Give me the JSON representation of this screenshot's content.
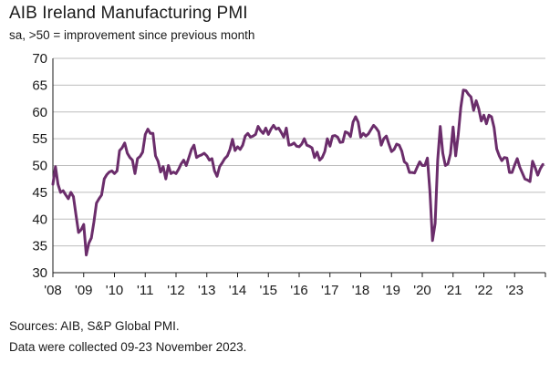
{
  "chart_data": {
    "type": "line",
    "title": "AIB Ireland Manufacturing PMI",
    "subtitle": "sa, >50 = improvement since previous month",
    "xlabel": "",
    "ylabel": "",
    "ylim": [
      30,
      70
    ],
    "yticks": [
      "70",
      "65",
      "60",
      "55",
      "50",
      "45",
      "40",
      "35",
      "30"
    ],
    "xticks": [
      "'08",
      "'09",
      "'10",
      "'11",
      "'12",
      "'13",
      "'14",
      "'15",
      "'16",
      "'17",
      "'18",
      "'19",
      "'20",
      "'21",
      "'22",
      "'23"
    ],
    "grid": "horizontal",
    "line_color": "#6b2d6b",
    "series": [
      {
        "start": "2008-01",
        "values": [
          46.5,
          49.8,
          46.5,
          45.0,
          45.3,
          44.5,
          43.8,
          45.0,
          44.2,
          40.8,
          37.5,
          38.0,
          39.0,
          33.3,
          35.5,
          36.5,
          39.5,
          43.0,
          43.8,
          44.5,
          47.5,
          48.3,
          48.8,
          49.0,
          48.5,
          49.0,
          52.8,
          53.3,
          54.2,
          52.3,
          51.5,
          51.0,
          48.5,
          51.3,
          51.7,
          52.5,
          55.8,
          56.8,
          56.0,
          56.0,
          51.8,
          50.8,
          48.8,
          49.8,
          47.5,
          50.0,
          48.5,
          48.8,
          48.5,
          49.3,
          50.3,
          51.0,
          50.0,
          51.5,
          53.0,
          53.8,
          51.5,
          51.8,
          52.0,
          52.3,
          51.8,
          51.0,
          51.3,
          49.0,
          48.0,
          49.8,
          50.5,
          51.3,
          51.8,
          53.0,
          54.9,
          52.8,
          53.5,
          53.0,
          53.8,
          55.5,
          56.0,
          55.3,
          55.5,
          55.8,
          57.3,
          56.5,
          56.0,
          57.0,
          55.8,
          56.8,
          57.5,
          56.8,
          57.0,
          56.2,
          55.3,
          57.0,
          53.8,
          53.9,
          54.2,
          53.6,
          53.5,
          54.0,
          55.0,
          53.8,
          53.6,
          53.3,
          51.5,
          52.5,
          51.0,
          51.5,
          52.6,
          55.0,
          53.6,
          55.5,
          55.6,
          55.3,
          54.3,
          54.4,
          56.3,
          56.1,
          55.4,
          58.1,
          59.1,
          58.1,
          55.3,
          56.0,
          55.5,
          55.9,
          56.7,
          57.5,
          57.0,
          56.3,
          53.8,
          55.0,
          55.5,
          54.0,
          52.6,
          53.0,
          54.0,
          53.8,
          52.7,
          50.7,
          50.3,
          48.7,
          48.7,
          48.6,
          49.7,
          50.7,
          50.0,
          50.0,
          51.4,
          45.1,
          36.0,
          39.2,
          51.0,
          57.3,
          52.3,
          50.0,
          50.3,
          52.2,
          57.2,
          51.8,
          55.7,
          60.8,
          64.1,
          64.0,
          63.3,
          62.8,
          60.3,
          62.1,
          60.6,
          58.3,
          59.4,
          57.8,
          59.4,
          59.1,
          57.1,
          53.1,
          51.8,
          50.9,
          51.5,
          51.4,
          48.7,
          48.7,
          50.1,
          51.3,
          49.7,
          48.6,
          47.5,
          47.3,
          47.0,
          50.8,
          49.6,
          48.2,
          49.4,
          50.2
        ]
      }
    ]
  },
  "sources": "Sources: AIB, S&P Global PMI.",
  "collection_note": "Data were collected 09-23 November 2023."
}
